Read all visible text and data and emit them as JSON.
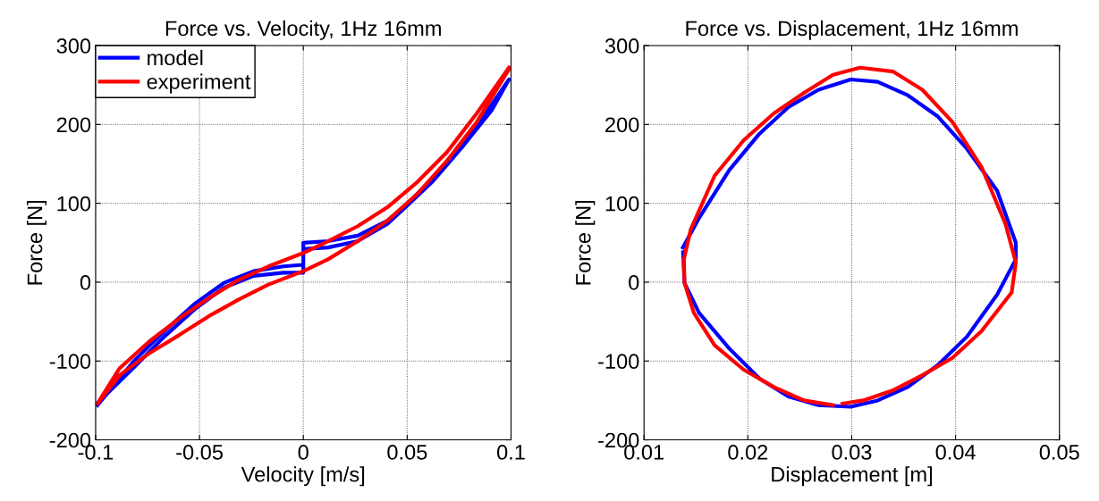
{
  "chart_data": [
    {
      "type": "line",
      "title": "Force vs. Velocity, 1Hz 16mm",
      "xlabel": "Velocity [m/s]",
      "ylabel": "Force [N]",
      "xlim": [
        -0.1,
        0.1
      ],
      "xticks": [
        -0.1,
        -0.05,
        0,
        0.05,
        0.1
      ],
      "ylim": [
        -200,
        300
      ],
      "yticks": [
        -200,
        -100,
        0,
        100,
        200,
        300
      ],
      "grid": true,
      "legend": "top left",
      "line_style": "solid",
      "marker": "none",
      "series": [
        {
          "name": "model",
          "color": "#0000ff",
          "x": [
            -0.0991,
            -0.0812,
            -0.0669,
            -0.0526,
            -0.0383,
            -0.0239,
            -0.0096,
            0,
            0,
            0.0119,
            0.0262,
            0.0405,
            0.05,
            0.062,
            0.0764,
            0.0907,
            0.099,
            0.0907,
            0.0764,
            0.062,
            0.05,
            0.0405,
            0.0262,
            0.0119,
            0,
            0,
            -0.0096,
            -0.0239,
            -0.0383,
            -0.0526,
            -0.0669,
            -0.0812,
            -0.0985
          ],
          "values": [
            -156,
            -99,
            -62,
            -28,
            -1,
            14,
            20,
            22,
            50,
            52,
            59,
            78,
            99,
            131,
            176,
            225,
            257,
            218,
            171,
            127,
            97,
            74,
            52,
            44,
            42,
            12,
            12,
            8,
            -7,
            -35,
            -69,
            -107,
            -152
          ]
        },
        {
          "name": "experiment",
          "color": "#ff0000",
          "x": [
            0.099,
            0.0835,
            0.0692,
            0.0549,
            0.0405,
            0.0262,
            0.0119,
            0,
            -0.0168,
            -0.0311,
            -0.0454,
            -0.0597,
            -0.0741,
            -0.0884,
            -0.0991,
            -0.0884,
            -0.0741,
            -0.0597,
            -0.0454,
            -0.0311,
            -0.0168,
            0,
            0.0119,
            0.0262,
            0.0405,
            0.0549,
            0.0692,
            0.0835,
            0.099
          ],
          "values": [
            272,
            214,
            165,
            127,
            95,
            71,
            52,
            37,
            20,
            3,
            -20,
            -46,
            -75,
            -109,
            -154,
            -118,
            -90,
            -67,
            -43,
            -22,
            -3,
            14,
            29,
            52,
            78,
            112,
            154,
            203,
            270
          ]
        }
      ]
    },
    {
      "type": "line",
      "title": "Force vs. Displacement, 1Hz 16mm",
      "xlabel": "Displacement [m]",
      "ylabel": "Force [N]",
      "xlim": [
        0.01,
        0.05
      ],
      "xticks": [
        0.01,
        0.02,
        0.03,
        0.04,
        0.05
      ],
      "ylim": [
        -200,
        300
      ],
      "yticks": [
        -200,
        -100,
        0,
        100,
        200,
        300
      ],
      "grid": true,
      "line_style": "solid",
      "marker": "none",
      "series": [
        {
          "color": "#0000ff",
          "x": [
            0.01375,
            0.01533,
            0.0182,
            0.0211,
            0.0239,
            0.0268,
            0.0299,
            0.0325,
            0.0354,
            0.0383,
            0.0411,
            0.044,
            0.0458,
            0.0458,
            0.044,
            0.0411,
            0.0383,
            0.0354,
            0.0325,
            0.0299,
            0.0268,
            0.0239,
            0.0211,
            0.0182,
            0.0153,
            0.0139,
            0.01376
          ],
          "values": [
            44,
            82,
            142,
            188,
            222,
            244,
            257,
            254,
            237,
            210,
            169,
            116,
            50,
            29,
            -16,
            -69,
            -105,
            -133,
            -150,
            -158,
            -156,
            -145,
            -122,
            -84,
            -39,
            -1,
            38
          ]
        },
        {
          "color": "#ff0000",
          "x": [
            0.0291,
            0.0311,
            0.034,
            0.0368,
            0.0397,
            0.0425,
            0.0454,
            0.0458,
            0.0448,
            0.0425,
            0.0397,
            0.0368,
            0.034,
            0.0308,
            0.0282,
            0.0254,
            0.0225,
            0.0196,
            0.0168,
            0.0145,
            0.01384,
            0.0139,
            0.0148,
            0.0168,
            0.0196,
            0.0225,
            0.0254,
            0.0282
          ],
          "values": [
            -154,
            -150,
            -137,
            -118,
            -96,
            -62,
            -13,
            25,
            74,
            146,
            203,
            244,
            267,
            272,
            263,
            240,
            214,
            180,
            135,
            67,
            29,
            -1,
            -39,
            -80,
            -111,
            -133,
            -150,
            -156
          ]
        }
      ]
    }
  ]
}
